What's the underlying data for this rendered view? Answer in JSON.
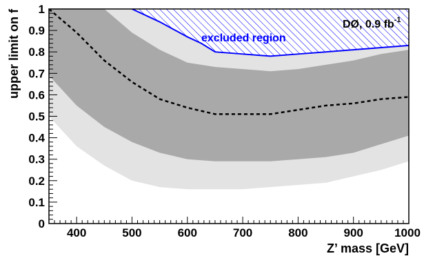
{
  "chart_data": {
    "type": "area",
    "title": "",
    "xlabel": "Z’ mass [GeV]",
    "ylabel": "upper limit on f",
    "xlim": [
      350,
      1000
    ],
    "ylim": [
      0,
      1
    ],
    "grid": false,
    "x_ticks": [
      400,
      500,
      600,
      700,
      800,
      900,
      1000
    ],
    "y_ticks": [
      0,
      0.1,
      0.2,
      0.3,
      0.4,
      0.5,
      0.6,
      0.7,
      0.8,
      0.9,
      1
    ],
    "x_tick_labels": [
      "400",
      "500",
      "600",
      "700",
      "800",
      "900",
      "1000"
    ],
    "y_tick_labels": [
      "0",
      "0.1",
      "0.2",
      "0.3",
      "0.4",
      "0.5",
      "0.6",
      "0.7",
      "0.8",
      "0.9",
      "1"
    ],
    "x": [
      350,
      400,
      450,
      500,
      550,
      600,
      650,
      700,
      750,
      800,
      850,
      900,
      950,
      1000
    ],
    "band_2sigma_upper": [
      1.0,
      1.0,
      1.0,
      1.0,
      0.97,
      0.94,
      0.92,
      0.92,
      0.91,
      0.91,
      0.91,
      0.91,
      0.91,
      0.92
    ],
    "band_1sigma_upper": [
      1.0,
      1.0,
      1.0,
      0.89,
      0.81,
      0.75,
      0.73,
      0.72,
      0.71,
      0.72,
      0.74,
      0.76,
      0.79,
      0.81
    ],
    "band_1sigma_lower": [
      0.69,
      0.55,
      0.45,
      0.38,
      0.33,
      0.3,
      0.29,
      0.29,
      0.29,
      0.3,
      0.31,
      0.33,
      0.37,
      0.41
    ],
    "band_2sigma_lower": [
      0.5,
      0.36,
      0.27,
      0.2,
      0.17,
      0.16,
      0.16,
      0.16,
      0.17,
      0.18,
      0.19,
      0.22,
      0.25,
      0.29
    ],
    "expected": [
      1.0,
      0.89,
      0.76,
      0.66,
      0.58,
      0.54,
      0.51,
      0.51,
      0.51,
      0.53,
      0.55,
      0.56,
      0.58,
      0.59
    ],
    "observed": [
      [
        500,
        1.0
      ],
      [
        550,
        0.94
      ],
      [
        600,
        0.87
      ],
      [
        625,
        0.84
      ],
      [
        650,
        0.8
      ],
      [
        700,
        0.79
      ],
      [
        750,
        0.78
      ],
      [
        800,
        0.79
      ],
      [
        850,
        0.8
      ],
      [
        900,
        0.81
      ],
      [
        950,
        0.82
      ],
      [
        1000,
        0.83
      ]
    ],
    "annotations": {
      "excluded_region": "excluded region",
      "experiment": "DØ, 0.9 fb",
      "experiment_superscript": "-1"
    },
    "colors": {
      "band_2sigma": "#e3e3e3",
      "band_1sigma": "#a9a9a9",
      "excluded": "#0000ff",
      "expected_line": "#000000"
    }
  }
}
